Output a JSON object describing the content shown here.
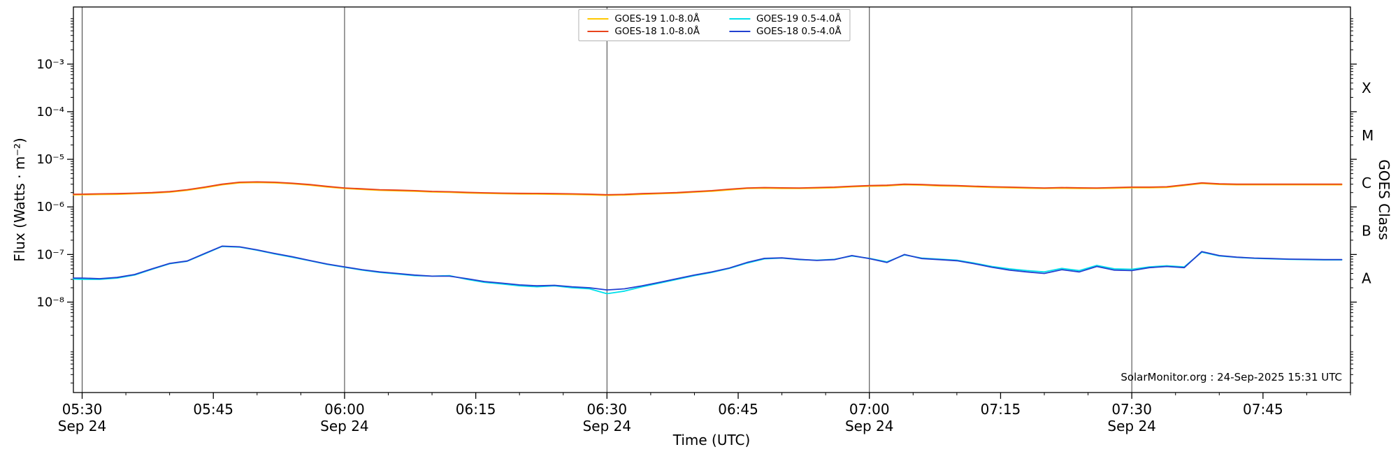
{
  "chart_data": {
    "type": "line",
    "xlabel": "Time (UTC)",
    "ylabel": "Flux (Watts · m⁻²)",
    "ylabel_right": "GOES Class",
    "annotation": "SolarMonitor.org : 24-Sep-2025 15:31 UTC",
    "legend_position": "upper center",
    "grid": "vertical lines at half hours",
    "x_axis": {
      "unit": "minutes after 05:30 UTC on Sep 24",
      "min": -1,
      "max": 145,
      "minor_step_min": 5,
      "gridline_times_min": [
        0,
        30,
        60,
        90,
        120
      ],
      "ticks": [
        {
          "t": 0,
          "label": "05:30",
          "date": "Sep 24"
        },
        {
          "t": 15,
          "label": "05:45",
          "date": null
        },
        {
          "t": 30,
          "label": "06:00",
          "date": "Sep 24"
        },
        {
          "t": 45,
          "label": "06:15",
          "date": null
        },
        {
          "t": 60,
          "label": "06:30",
          "date": "Sep 24"
        },
        {
          "t": 75,
          "label": "06:45",
          "date": null
        },
        {
          "t": 90,
          "label": "07:00",
          "date": "Sep 24"
        },
        {
          "t": 105,
          "label": "07:15",
          "date": null
        },
        {
          "t": 120,
          "label": "07:30",
          "date": "Sep 24"
        },
        {
          "t": 135,
          "label": "07:45",
          "date": null
        }
      ]
    },
    "y_axis": {
      "scale": "log",
      "min_exp": -9.9,
      "max_exp": -1.8,
      "ticks": [
        {
          "exp": -3,
          "label": "10⁻³"
        },
        {
          "exp": -4,
          "label": "10⁻⁴"
        },
        {
          "exp": -5,
          "label": "10⁻⁵"
        },
        {
          "exp": -6,
          "label": "10⁻⁶"
        },
        {
          "exp": -7,
          "label": "10⁻⁷"
        },
        {
          "exp": -8,
          "label": "10⁻⁸"
        }
      ]
    },
    "y_axis_right": {
      "classes": [
        {
          "label": "X",
          "exp": -3.5
        },
        {
          "label": "M",
          "exp": -4.5
        },
        {
          "label": "C",
          "exp": -5.5
        },
        {
          "label": "B",
          "exp": -6.5
        },
        {
          "label": "A",
          "exp": -7.5
        }
      ]
    },
    "t_min": [
      -1,
      0,
      2,
      4,
      6,
      8,
      10,
      12,
      14,
      16,
      18,
      20,
      22,
      24,
      26,
      28,
      30,
      32,
      34,
      36,
      38,
      40,
      42,
      44,
      46,
      48,
      50,
      52,
      54,
      56,
      58,
      60,
      62,
      64,
      66,
      68,
      70,
      72,
      74,
      76,
      78,
      80,
      82,
      84,
      86,
      88,
      90,
      92,
      94,
      96,
      98,
      100,
      102,
      104,
      106,
      108,
      110,
      112,
      114,
      116,
      118,
      120,
      122,
      124,
      126,
      128,
      130,
      132,
      134,
      136,
      138,
      140,
      142,
      144
    ],
    "series": [
      {
        "name": "GOES-19 1.0-8.0Å",
        "color": "#ffc800",
        "values": [
          1.79e-06,
          1.8e-06,
          1.82e-06,
          1.84e-06,
          1.89e-06,
          1.94e-06,
          2.04e-06,
          2.23e-06,
          2.52e-06,
          2.91e-06,
          3.2e-06,
          3.25e-06,
          3.2e-06,
          3.06e-06,
          2.86e-06,
          2.62e-06,
          2.43e-06,
          2.33e-06,
          2.23e-06,
          2.18e-06,
          2.13e-06,
          2.06e-06,
          2.02e-06,
          1.96e-06,
          1.92e-06,
          1.89e-06,
          1.87e-06,
          1.86e-06,
          1.84e-06,
          1.82e-06,
          1.79e-06,
          1.75e-06,
          1.78e-06,
          1.84e-06,
          1.89e-06,
          1.94e-06,
          2.04e-06,
          2.13e-06,
          2.28e-06,
          2.43e-06,
          2.47e-06,
          2.44e-06,
          2.43e-06,
          2.47e-06,
          2.52e-06,
          2.64e-06,
          2.72e-06,
          2.76e-06,
          2.91e-06,
          2.86e-06,
          2.76e-06,
          2.72e-06,
          2.64e-06,
          2.57e-06,
          2.52e-06,
          2.47e-06,
          2.43e-06,
          2.47e-06,
          2.44e-06,
          2.43e-06,
          2.47e-06,
          2.52e-06,
          2.52e-06,
          2.57e-06,
          2.81e-06,
          3.1e-06,
          2.96e-06,
          2.91e-06,
          2.91e-06,
          2.91e-06,
          2.91e-06,
          2.91e-06,
          2.91e-06,
          2.91e-06
        ]
      },
      {
        "name": "GOES-19 0.5-4.0Å",
        "color": "#00e0ea",
        "values": [
          3.05e-08,
          3e-08,
          3e-08,
          3.2e-08,
          3.7e-08,
          4.9e-08,
          6.4e-08,
          7.2e-08,
          1.03e-07,
          1.48e-07,
          1.43e-07,
          1.23e-07,
          1.03e-07,
          8.8e-08,
          7.4e-08,
          6.2e-08,
          5.4e-08,
          4.7e-08,
          4.2e-08,
          3.9e-08,
          3.6e-08,
          3.5e-08,
          3.6e-08,
          3e-08,
          2.6e-08,
          2.4e-08,
          2.2e-08,
          2.1e-08,
          2.2e-08,
          2e-08,
          1.9e-08,
          1.5e-08,
          1.7e-08,
          2.1e-08,
          2.5e-08,
          3e-08,
          3.6e-08,
          4.2e-08,
          5.1e-08,
          6.6e-08,
          8.1e-08,
          8.4e-08,
          7.8e-08,
          7.6e-08,
          7.9e-08,
          9.3e-08,
          8.3e-08,
          7e-08,
          9.8e-08,
          8.4e-08,
          8e-08,
          7.6e-08,
          6.6e-08,
          5.6e-08,
          5e-08,
          4.6e-08,
          4.3e-08,
          5.1e-08,
          4.6e-08,
          5.9e-08,
          5e-08,
          4.9e-08,
          5.5e-08,
          5.8e-08,
          5.5e-08,
          1.12e-07,
          9.3e-08,
          8.7e-08,
          8.3e-08,
          8.1e-08,
          7.9e-08,
          7.8e-08,
          7.7e-08,
          7.7e-08
        ]
      },
      {
        "name": "GOES-18 1.0-8.0Å",
        "color": "#e8431c",
        "values": [
          1.84e-06,
          1.85e-06,
          1.88e-06,
          1.9e-06,
          1.95e-06,
          2e-06,
          2.1e-06,
          2.3e-06,
          2.6e-06,
          3e-06,
          3.3e-06,
          3.35e-06,
          3.3e-06,
          3.15e-06,
          2.95e-06,
          2.7e-06,
          2.5e-06,
          2.4e-06,
          2.3e-06,
          2.25e-06,
          2.2e-06,
          2.12e-06,
          2.08e-06,
          2.02e-06,
          1.98e-06,
          1.95e-06,
          1.93e-06,
          1.92e-06,
          1.9e-06,
          1.88e-06,
          1.85e-06,
          1.8e-06,
          1.83e-06,
          1.9e-06,
          1.95e-06,
          2e-06,
          2.1e-06,
          2.2e-06,
          2.35e-06,
          2.5e-06,
          2.55e-06,
          2.52e-06,
          2.5e-06,
          2.55e-06,
          2.6e-06,
          2.72e-06,
          2.8e-06,
          2.85e-06,
          3e-06,
          2.95e-06,
          2.85e-06,
          2.8e-06,
          2.72e-06,
          2.65e-06,
          2.6e-06,
          2.55e-06,
          2.5e-06,
          2.55e-06,
          2.52e-06,
          2.5e-06,
          2.55e-06,
          2.6e-06,
          2.6e-06,
          2.65e-06,
          2.9e-06,
          3.2e-06,
          3.05e-06,
          3e-06,
          3e-06,
          3e-06,
          3e-06,
          3e-06,
          3e-06,
          3e-06
        ]
      },
      {
        "name": "GOES-18 0.5-4.0Å",
        "color": "#2240d0",
        "values": [
          3.2e-08,
          3.2e-08,
          3.1e-08,
          3.3e-08,
          3.8e-08,
          5e-08,
          6.5e-08,
          7.3e-08,
          1.05e-07,
          1.5e-07,
          1.45e-07,
          1.25e-07,
          1.05e-07,
          9e-08,
          7.5e-08,
          6.3e-08,
          5.5e-08,
          4.8e-08,
          4.3e-08,
          4e-08,
          3.7e-08,
          3.5e-08,
          3.5e-08,
          3.1e-08,
          2.7e-08,
          2.5e-08,
          2.3e-08,
          2.2e-08,
          2.25e-08,
          2.1e-08,
          2e-08,
          1.8e-08,
          1.9e-08,
          2.2e-08,
          2.6e-08,
          3.1e-08,
          3.7e-08,
          4.3e-08,
          5.2e-08,
          6.8e-08,
          8.3e-08,
          8.5e-08,
          7.9e-08,
          7.5e-08,
          7.8e-08,
          9.5e-08,
          8.2e-08,
          6.8e-08,
          1e-07,
          8.2e-08,
          7.8e-08,
          7.4e-08,
          6.4e-08,
          5.4e-08,
          4.7e-08,
          4.3e-08,
          4e-08,
          4.8e-08,
          4.3e-08,
          5.6e-08,
          4.7e-08,
          4.6e-08,
          5.3e-08,
          5.6e-08,
          5.3e-08,
          1.15e-07,
          9.5e-08,
          8.8e-08,
          8.4e-08,
          8.2e-08,
          8e-08,
          7.9e-08,
          7.8e-08,
          7.8e-08
        ]
      }
    ]
  }
}
